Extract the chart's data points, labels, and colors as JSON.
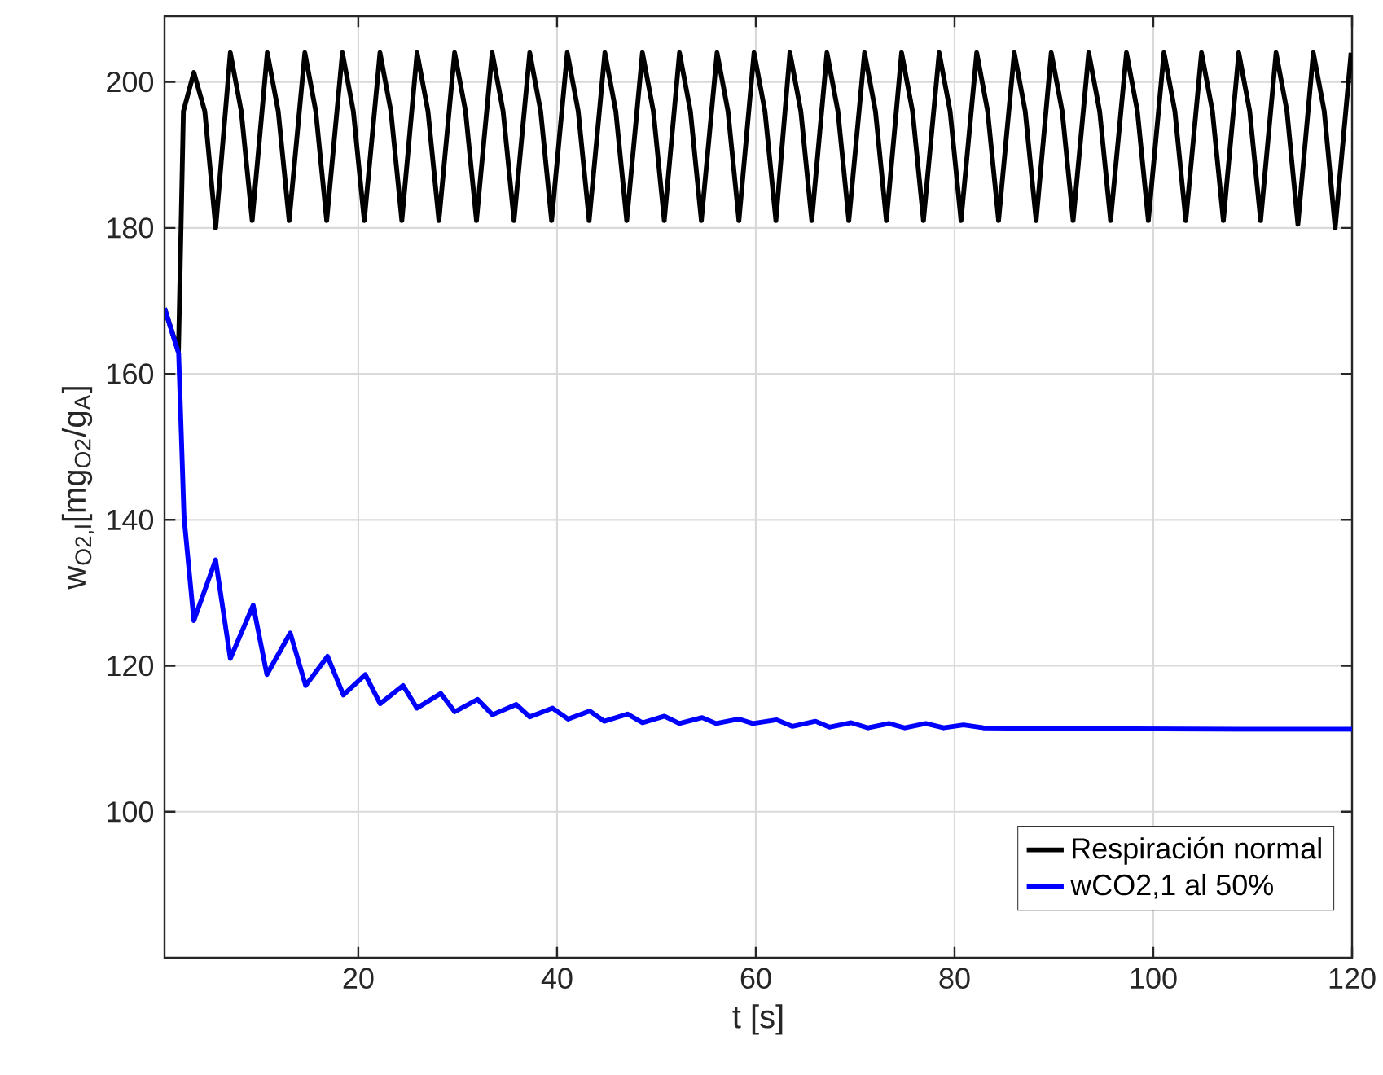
{
  "chart_data": {
    "type": "line",
    "xlabel": "t [s]",
    "ylabel": "w$_{O2,l}$[mg$_{O2}$/g$_{A}$]",
    "xlim": [
      0.5,
      120
    ],
    "ylim": [
      80,
      209
    ],
    "xticks": [
      20,
      40,
      60,
      80,
      100,
      120
    ],
    "yticks": [
      100,
      120,
      140,
      160,
      180,
      200
    ],
    "grid": true,
    "legend": "bottom right",
    "marker": "none",
    "line_style": "solid",
    "series": [
      {
        "name": "Respiración normal",
        "color": "#000000",
        "x": [
          0.5,
          1.9,
          2.4,
          3.45,
          4.55,
          5.65,
          7.12,
          8.22,
          9.32,
          10.84,
          11.94,
          13.04,
          14.62,
          15.72,
          16.82,
          18.4,
          19.5,
          20.6,
          22.18,
          23.28,
          24.38,
          25.91,
          27.01,
          28.11,
          29.69,
          30.79,
          31.89,
          33.47,
          34.57,
          35.67,
          37.25,
          38.35,
          39.45,
          41.03,
          42.13,
          43.23,
          44.81,
          45.91,
          47.01,
          48.59,
          49.69,
          50.79,
          52.32,
          53.42,
          54.52,
          56.1,
          57.2,
          58.3,
          59.82,
          60.92,
          62.02,
          63.43,
          64.53,
          65.63,
          67.16,
          68.26,
          69.36,
          70.94,
          72.04,
          73.14,
          74.67,
          75.77,
          76.87,
          78.45,
          79.55,
          80.65,
          82.23,
          83.33,
          84.43,
          86.01,
          87.11,
          88.21,
          89.73,
          90.83,
          91.93,
          93.5,
          94.6,
          95.7,
          97.3,
          98.4,
          99.5,
          101.07,
          102.17,
          103.27,
          104.85,
          105.95,
          107.05,
          108.6,
          109.7,
          110.8,
          112.35,
          113.45,
          114.55,
          116.1,
          117.2,
          118.3,
          119.9
        ],
        "values": [
          169,
          163,
          196,
          201.3,
          196,
          180,
          204,
          196,
          181,
          204,
          196,
          181,
          204,
          196,
          181,
          204,
          196,
          181,
          204,
          196,
          181,
          204,
          196,
          181,
          204,
          196,
          181,
          204,
          196,
          181,
          204,
          196,
          181,
          204,
          196,
          181,
          204,
          196,
          181,
          204,
          196,
          181,
          204,
          196,
          181,
          204,
          196,
          181,
          204,
          196,
          181,
          204,
          196,
          181,
          204,
          196,
          181,
          204,
          196,
          181,
          204,
          196,
          181,
          204,
          196,
          181,
          204,
          196,
          181,
          204,
          196,
          181,
          204,
          196,
          181,
          204,
          196,
          181,
          204,
          196,
          181,
          204,
          196,
          181,
          204,
          196,
          181,
          204,
          196,
          181,
          204,
          196,
          180.5,
          204,
          196,
          180,
          204
        ]
      },
      {
        "name": "wCO2,1 al 50%",
        "color": "#0000ff",
        "x": [
          0.5,
          1.92,
          2.46,
          3.45,
          5.64,
          7.12,
          9.42,
          10.8,
          13.15,
          14.7,
          16.9,
          18.5,
          20.7,
          22.2,
          24.5,
          25.9,
          28.3,
          29.7,
          32.0,
          33.5,
          35.9,
          37.25,
          39.55,
          41.1,
          43.3,
          44.75,
          47.1,
          48.6,
          50.8,
          52.3,
          54.6,
          56.0,
          58.3,
          59.7,
          62.1,
          63.7,
          66.0,
          67.4,
          69.6,
          71.3,
          73.4,
          75.0,
          77.1,
          78.9,
          80.9,
          82.9,
          92.3,
          108.7,
          120
        ],
        "values": [
          169,
          162.8,
          140.4,
          126.2,
          134.5,
          121.0,
          128.3,
          118.8,
          124.5,
          117.3,
          121.3,
          116.0,
          118.8,
          114.8,
          117.3,
          114.2,
          116.2,
          113.7,
          115.4,
          113.3,
          114.7,
          113.0,
          114.2,
          112.7,
          113.8,
          112.4,
          113.4,
          112.2,
          113.1,
          112.1,
          112.9,
          112.1,
          112.7,
          112.1,
          112.6,
          111.7,
          112.4,
          111.6,
          112.2,
          111.5,
          112.1,
          111.5,
          112.1,
          111.5,
          111.9,
          111.5,
          111.4,
          111.3,
          111.3
        ]
      }
    ]
  }
}
